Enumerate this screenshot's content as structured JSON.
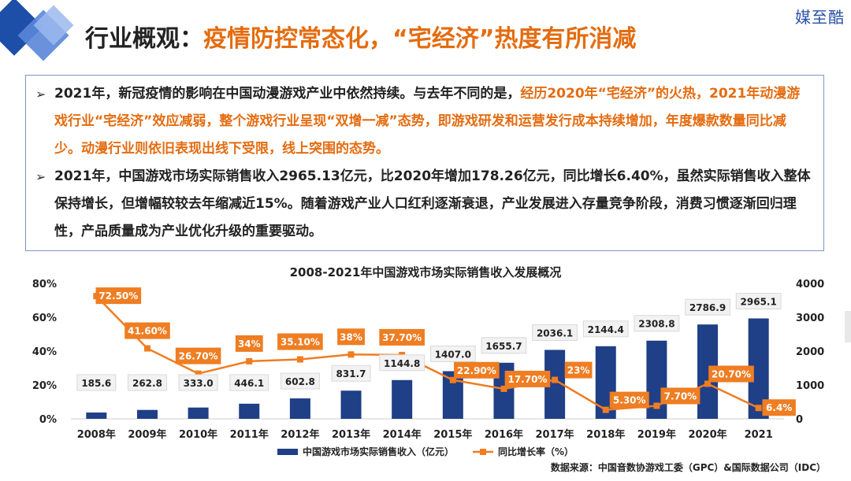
{
  "brand": "媒至酷",
  "header": {
    "title_lead": "行业概观：",
    "title_rest": "疫情防控常态化，“宅经济”热度有所消减"
  },
  "summary": {
    "p1_a": "2021年，新冠疫情的影响在中国动漫游戏产业中依然持续。与去年不同的是，",
    "p1_b": "经历2020年“宅经济”的火热，2021年动漫游戏行业“宅经济”效应减弱，整个游戏行业呈现“双增一减”态势，即游戏研发和运营发行成本持续增加，年度爆款数量同比减少。动漫行业则依旧表现出线下受限，线上突围的态势。",
    "p2": "2021年，中国游戏市场实际销售收入2965.13亿元，比2020年增加178.26亿元，同比增长6.40%，虽然实际销售收入整体保持增长，但增幅较较去年缩减近15%。随着游戏产业人口红利逐渐衰退，产业发展进入存量竞争阶段，消费习惯逐渐回归理性，产品质量成为产业优化升级的重要驱动。"
  },
  "chart_data": {
    "type": "bar",
    "title": "2008-2021年中国游戏市场实际销售收入发展概况",
    "categories": [
      "2008年",
      "2009年",
      "2010年",
      "2011年",
      "2012年",
      "2013年",
      "2014年",
      "2015年",
      "2016年",
      "2017年",
      "2018年",
      "2019年",
      "2020年",
      "2021"
    ],
    "series": [
      {
        "name": "中国游戏市场实际销售收入（亿元）",
        "axis": "right",
        "values": [
          185.6,
          262.8,
          333.0,
          446.1,
          602.8,
          831.7,
          1144.8,
          1407.0,
          1655.7,
          2036.1,
          2144.4,
          2308.8,
          2786.9,
          2965.1
        ],
        "labels": [
          "185.6",
          "262.8",
          "333.0",
          "446.1",
          "602.8",
          "831.7",
          "1144.8",
          "1407.0",
          "1655.7",
          "2036.1",
          "2144.4",
          "2308.8",
          "2786.9",
          "2965.1"
        ]
      },
      {
        "name": "同比增长率（%）",
        "type": "line",
        "axis": "left",
        "values": [
          72.5,
          41.6,
          26.7,
          34,
          35.1,
          38,
          37.7,
          22.9,
          17.7,
          23,
          5.3,
          7.7,
          20.7,
          6.4
        ],
        "labels": [
          "72.50%",
          "41.60%",
          "26.70%",
          "34%",
          "35.10%",
          "38%",
          "37.70%",
          "22.90%",
          "17.70%",
          "23%",
          "5.30%",
          "7.70%",
          "20.70%",
          "6.4%"
        ]
      }
    ],
    "left_axis": {
      "min": 0,
      "max": 80,
      "ticks": [
        "0%",
        "20%",
        "40%",
        "60%",
        "80%"
      ]
    },
    "right_axis": {
      "min": 0,
      "max": 4000,
      "ticks": [
        "0",
        "1000",
        "2000",
        "3000",
        "4000"
      ]
    },
    "legend": "bottom",
    "source": "数据来源：中国音数协游戏工委（GPC）&国际数据公司（IDC）",
    "colors": {
      "bar": "#1f3f86",
      "line": "#ef7d22",
      "label_bg": "#ef7d22",
      "bar_label_bg": "#f2f2f2"
    }
  }
}
